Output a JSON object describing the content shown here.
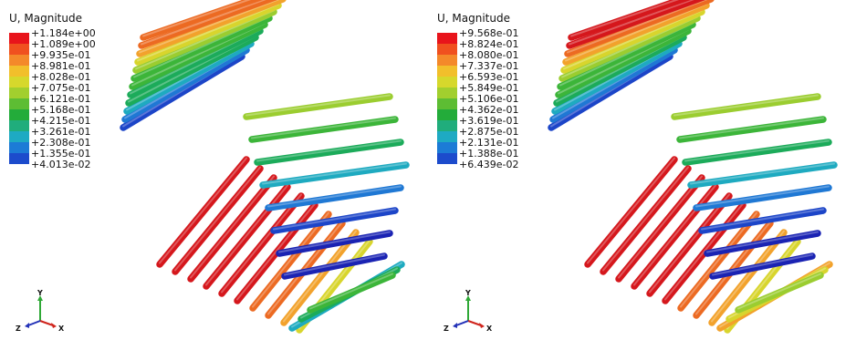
{
  "panels": [
    {
      "legend_title": "U, Magnitude",
      "legend_values": [
        "+1.184e+00",
        "+1.089e+00",
        "+9.935e-01",
        "+8.981e-01",
        "+8.028e-01",
        "+7.075e-01",
        "+6.121e-01",
        "+5.168e-01",
        "+4.215e-01",
        "+3.261e-01",
        "+2.308e-01",
        "+1.355e-01",
        "+4.013e-02"
      ],
      "triad": {
        "x": "X",
        "y": "Y",
        "z": "Z"
      }
    },
    {
      "legend_title": "U, Magnitude",
      "legend_values": [
        "+9.568e-01",
        "+8.824e-01",
        "+8.080e-01",
        "+7.337e-01",
        "+6.593e-01",
        "+5.849e-01",
        "+5.106e-01",
        "+4.362e-01",
        "+3.619e-01",
        "+2.875e-01",
        "+2.131e-01",
        "+1.388e-01",
        "+6.439e-02"
      ],
      "triad": {
        "x": "X",
        "y": "Y",
        "z": "Z"
      }
    }
  ],
  "colors": {
    "legend_bands": [
      "#e8141b",
      "#f0501f",
      "#f4892a",
      "#f2bf2b",
      "#d6d82c",
      "#a2cf2e",
      "#5dbd33",
      "#23ac3a",
      "#20ad7c",
      "#1eaac3",
      "#1c7bd6",
      "#1c4bcc",
      "#1b21b4"
    ],
    "rod_palette": [
      "#d5171c",
      "#ec6a22",
      "#f2a22c",
      "#d8d52d",
      "#9bcd30",
      "#3cb539",
      "#1cab5a",
      "#1eaac0",
      "#1f78d4",
      "#1c45c8",
      "#1a23b3"
    ]
  },
  "mesh": {
    "left": [
      {
        "c": 9,
        "n": 1
      },
      {
        "c": 8,
        "n": 1
      },
      {
        "c": 7,
        "n": 1
      },
      {
        "c": 6,
        "n": 1
      },
      {
        "c": 6,
        "n": 1
      },
      {
        "c": 5,
        "n": 1
      },
      {
        "c": 5,
        "n": 1
      },
      {
        "c": 4,
        "n": 1
      },
      {
        "c": 3,
        "n": 1
      },
      {
        "c": 2,
        "n": 1
      },
      {
        "c": 1,
        "n": 1
      },
      {
        "c": 1,
        "n": 1
      },
      {
        "c": 0,
        "n": 1
      },
      {
        "c": 0,
        "n": 1
      },
      {
        "c": 0,
        "n": 1
      },
      {
        "c": 0,
        "n": 1
      },
      {
        "c": 0,
        "n": 1
      },
      {
        "c": 0,
        "n": 1
      },
      {
        "c": 1,
        "n": 1
      },
      {
        "c": 1,
        "n": 1
      },
      {
        "c": 2,
        "n": 1
      },
      {
        "c": 3,
        "n": 1
      },
      {
        "c": 4,
        "n": 1
      },
      {
        "c": 5,
        "n": 1
      },
      {
        "c": 6,
        "n": 1
      },
      {
        "c": 7,
        "n": 1
      },
      {
        "c": 8,
        "n": 1
      },
      {
        "c": 9,
        "n": 1
      },
      {
        "c": 10,
        "n": 1
      },
      {
        "c": 10,
        "n": 1
      },
      {
        "c": 7,
        "n": 1
      },
      {
        "c": 6,
        "n": 1
      },
      {
        "c": 5,
        "n": 1
      }
    ],
    "right": [
      {
        "c": 9,
        "n": 1
      },
      {
        "c": 8,
        "n": 1
      },
      {
        "c": 7,
        "n": 1
      },
      {
        "c": 6,
        "n": 1
      },
      {
        "c": 5,
        "n": 1
      },
      {
        "c": 5,
        "n": 1
      },
      {
        "c": 4,
        "n": 1
      },
      {
        "c": 3,
        "n": 1
      },
      {
        "c": 2,
        "n": 1
      },
      {
        "c": 1,
        "n": 1
      },
      {
        "c": 0,
        "n": 1
      },
      {
        "c": 0,
        "n": 1
      },
      {
        "c": 0,
        "n": 1
      },
      {
        "c": 0,
        "n": 1
      },
      {
        "c": 0,
        "n": 1
      },
      {
        "c": 0,
        "n": 1
      },
      {
        "c": 0,
        "n": 1
      },
      {
        "c": 0,
        "n": 1
      },
      {
        "c": 1,
        "n": 1
      },
      {
        "c": 1,
        "n": 1
      },
      {
        "c": 2,
        "n": 1
      },
      {
        "c": 3,
        "n": 1
      },
      {
        "c": 4,
        "n": 1
      },
      {
        "c": 5,
        "n": 1
      },
      {
        "c": 6,
        "n": 1
      },
      {
        "c": 7,
        "n": 1
      },
      {
        "c": 8,
        "n": 1
      },
      {
        "c": 9,
        "n": 1
      },
      {
        "c": 10,
        "n": 1
      },
      {
        "c": 10,
        "n": 1
      },
      {
        "c": 2,
        "n": 1
      },
      {
        "c": 3,
        "n": 1
      },
      {
        "c": 4,
        "n": 1
      }
    ]
  }
}
